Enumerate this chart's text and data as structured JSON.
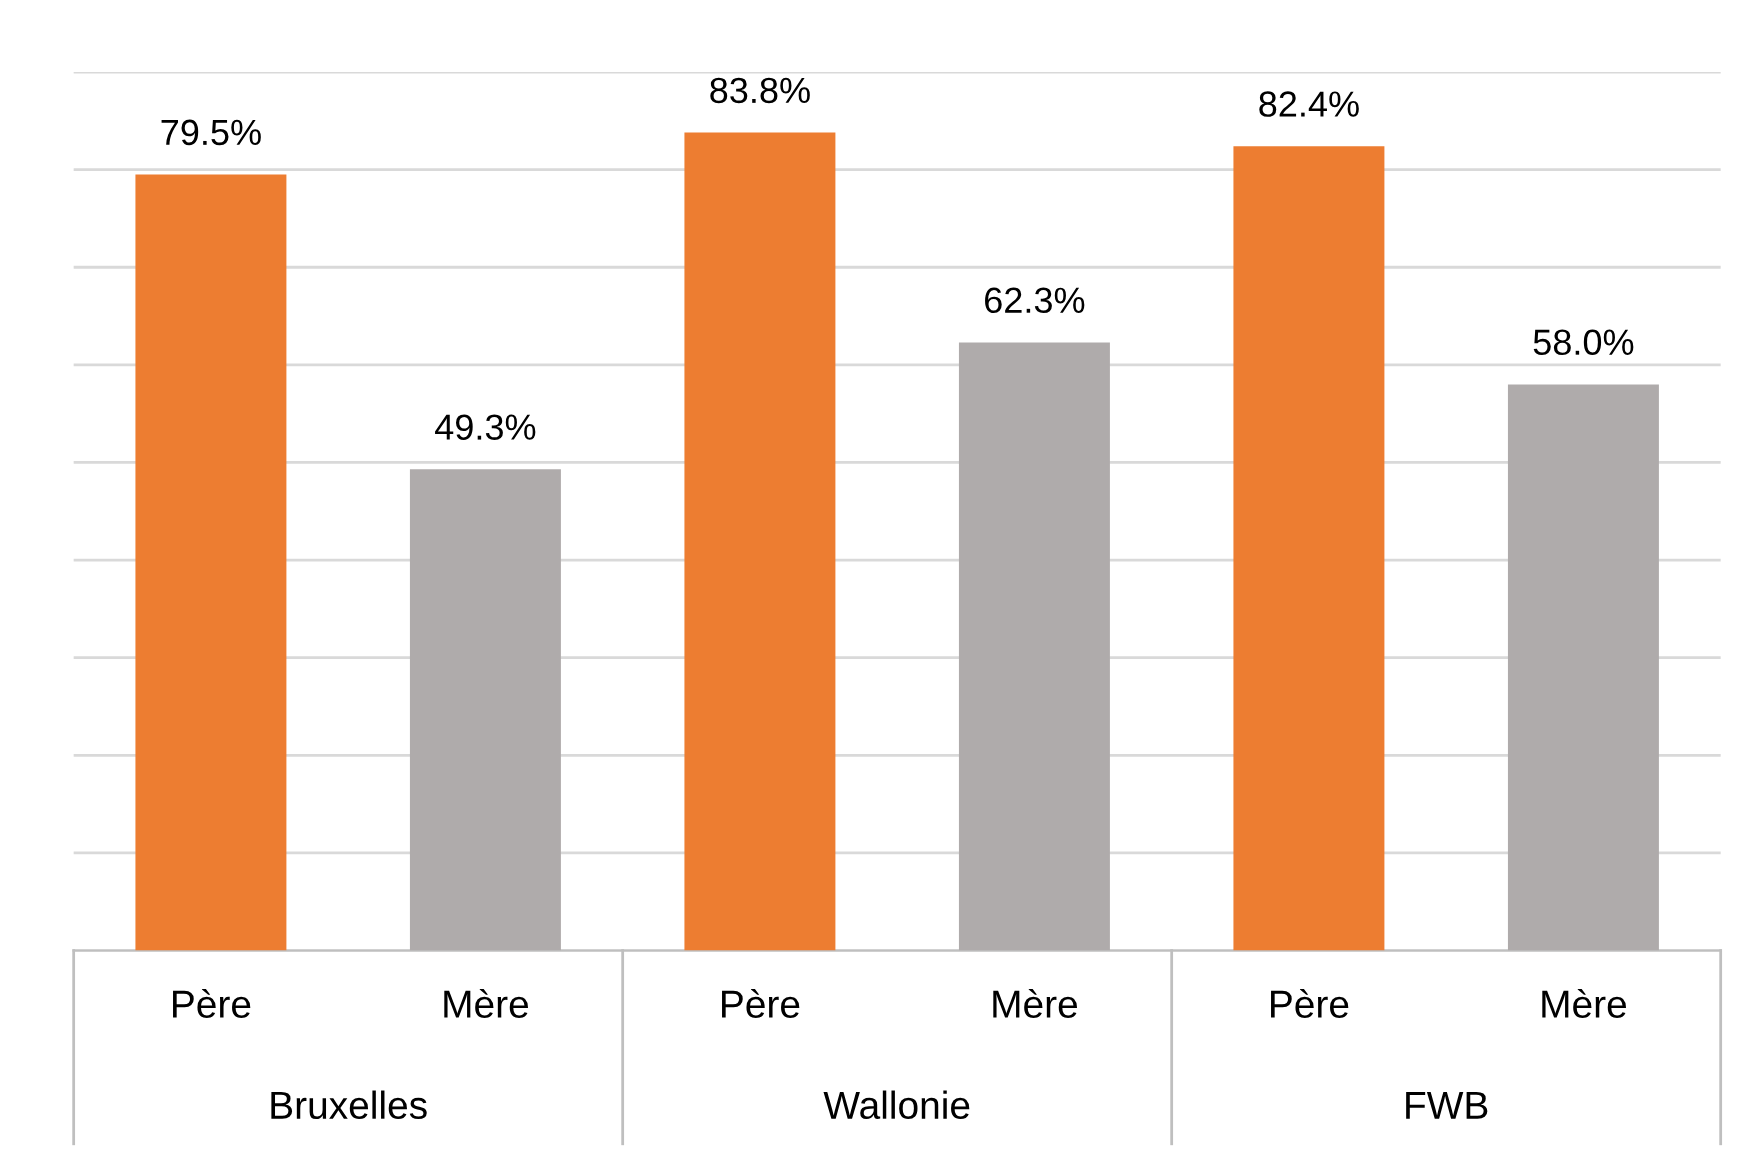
{
  "chart_data": {
    "type": "bar",
    "categories": [
      "Père",
      "Mère",
      "Père",
      "Mère",
      "Père",
      "Mère"
    ],
    "values": [
      79.5,
      49.3,
      83.8,
      62.3,
      82.4,
      58.0
    ],
    "colors": [
      "#ed7d31",
      "#afabab",
      "#ed7d31",
      "#afabab",
      "#ed7d31",
      "#afabab"
    ],
    "value_labels": [
      "79.5%",
      "49.3%",
      "83.8%",
      "62.3%",
      "82.4%",
      "58.0%"
    ],
    "annotations": [
      "Bruxelles",
      "Wallonie",
      "FWB"
    ],
    "ylim": [
      0,
      90
    ],
    "yticks": [
      {
        "value": 0,
        "label": null
      },
      {
        "value": 10,
        "label": null
      },
      {
        "value": 20,
        "label": null
      },
      {
        "value": 30,
        "label": null
      },
      {
        "value": 40,
        "label": null
      },
      {
        "value": 50,
        "label": null
      },
      {
        "value": 60,
        "label": null
      },
      {
        "value": 70,
        "label": null
      },
      {
        "value": 80,
        "label": null
      },
      {
        "value": 90,
        "label": null
      }
    ],
    "grid": "y",
    "tick_labels": "x"
  }
}
